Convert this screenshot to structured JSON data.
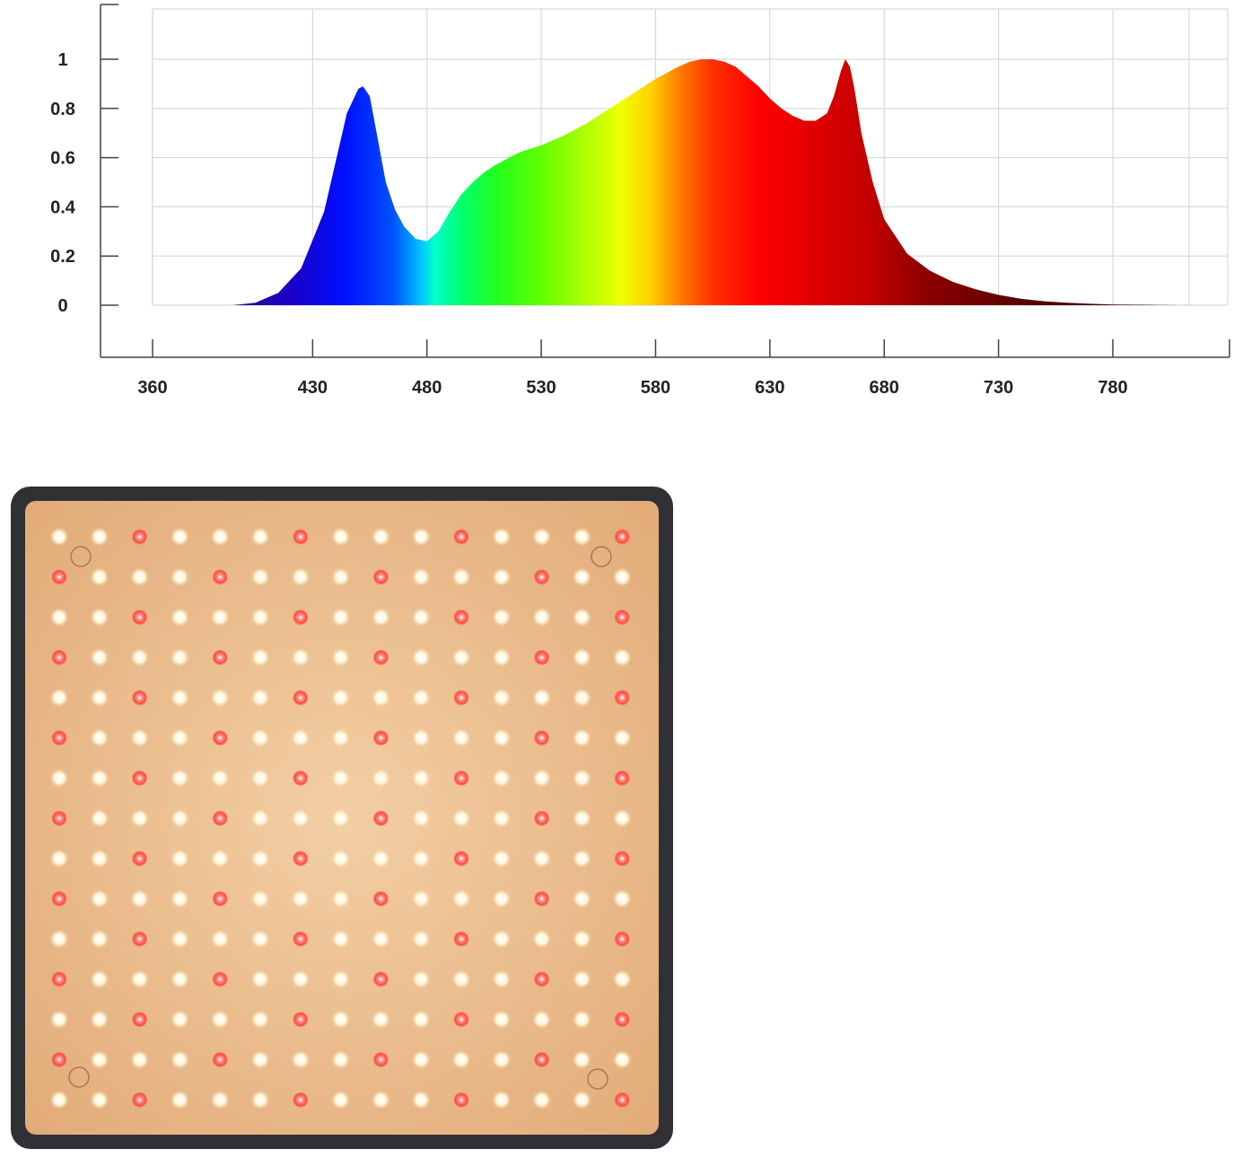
{
  "chart_data": {
    "type": "area",
    "title": "",
    "xlabel": "",
    "ylabel": "",
    "x_ticks": [
      360,
      430,
      480,
      530,
      580,
      630,
      680,
      730,
      780
    ],
    "y_ticks": [
      "0",
      "0.2",
      "0.4",
      "0.6",
      "0.8",
      "1"
    ],
    "xlim": [
      360,
      825
    ],
    "ylim": [
      0,
      1.2
    ],
    "grid": true,
    "fill": "visible-spectrum gradient (colored by wavelength)",
    "series": [
      {
        "x": [
          395,
          405,
          415,
          425,
          435,
          440,
          445,
          450,
          452,
          455,
          458,
          462,
          466,
          470,
          475,
          480,
          485,
          490,
          495,
          500,
          505,
          510,
          520,
          530,
          540,
          550,
          560,
          570,
          580,
          590,
          595,
          600,
          605,
          610,
          615,
          620,
          625,
          630,
          635,
          640,
          645,
          650,
          655,
          658,
          661,
          663,
          665,
          667,
          670,
          675,
          680,
          690,
          700,
          710,
          720,
          730,
          740,
          750,
          760,
          770,
          780,
          790,
          800,
          810
        ],
        "y": [
          0.0,
          0.01,
          0.05,
          0.15,
          0.38,
          0.58,
          0.78,
          0.88,
          0.89,
          0.85,
          0.7,
          0.5,
          0.39,
          0.32,
          0.27,
          0.26,
          0.3,
          0.38,
          0.45,
          0.5,
          0.54,
          0.57,
          0.62,
          0.65,
          0.69,
          0.74,
          0.8,
          0.86,
          0.92,
          0.97,
          0.99,
          1.0,
          1.0,
          0.99,
          0.97,
          0.93,
          0.89,
          0.84,
          0.8,
          0.77,
          0.75,
          0.75,
          0.78,
          0.85,
          0.95,
          1.0,
          0.97,
          0.88,
          0.7,
          0.5,
          0.35,
          0.21,
          0.14,
          0.095,
          0.065,
          0.042,
          0.026,
          0.016,
          0.01,
          0.006,
          0.003,
          0.002,
          0.001,
          0.0
        ]
      }
    ]
  },
  "panel": {
    "description_icon": "led-grow-light-panel",
    "rows": 15,
    "cols": 15,
    "colors": {
      "white_led": "#fff6dc",
      "red_led": "#ff5a52",
      "board": "#e8b98a",
      "frame": "#2f3134"
    }
  }
}
